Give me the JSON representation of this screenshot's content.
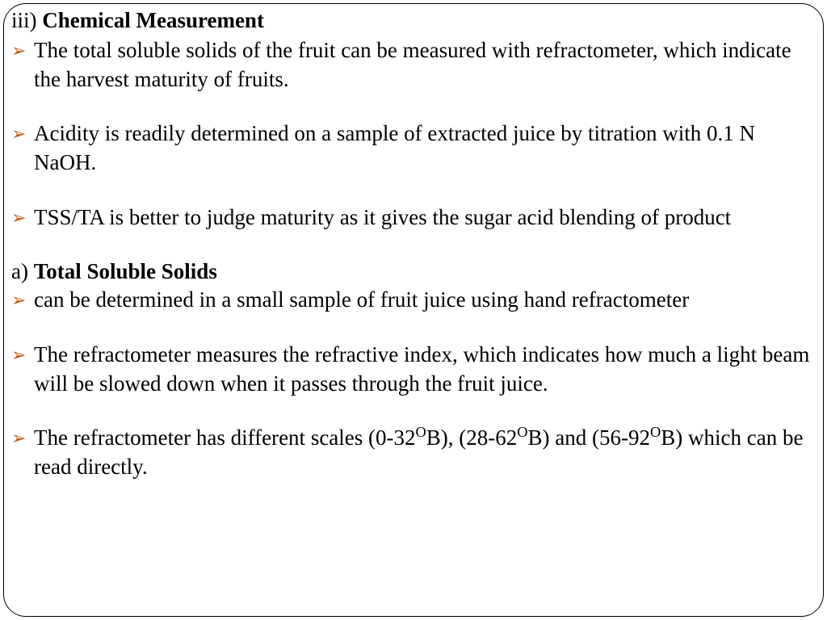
{
  "heading": {
    "prefix": "iii) ",
    "title": "Chemical Measurement"
  },
  "bullets_top": [
    "The total soluble solids of the fruit can be measured with refractometer, which indicate the harvest maturity of fruits.",
    "Acidity is readily determined on a sample of extracted juice by titration with 0.1 N NaOH.",
    "TSS/TA is better to judge maturity as it gives the sugar acid blending of product"
  ],
  "sub_heading": {
    "prefix": "a) ",
    "title": "Total Soluble Solids"
  },
  "bullets_bottom": [
    "can be determined in a small sample of fruit juice using hand refractometer",
    "The refractometer measures the refractive index, which indicates how much a light beam will be slowed down when it passes through the fruit juice."
  ],
  "bullet_scales": {
    "pre": "The refractometer has different scales (0-32",
    "sup1": "O",
    "mid1": "B), (28-62",
    "sup2": "O",
    "mid2": "B) and (56-92",
    "sup3": "O",
    "post": "B) which can be read directly."
  },
  "bullet_marker": "➢",
  "colors": {
    "bullet": "#c45a1c",
    "text": "#000000",
    "background": "#ffffff",
    "border": "#000000"
  }
}
